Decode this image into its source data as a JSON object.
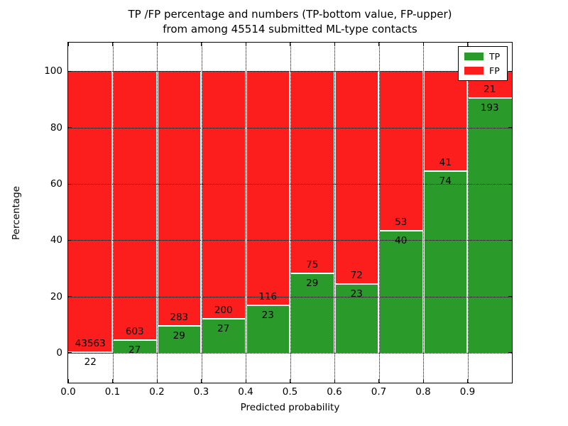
{
  "figure": {
    "title_line1": "TP /FP percentage and numbers (TP-bottom value, FP-upper)",
    "title_line2": "from among 45514 submitted ML-type contacts"
  },
  "chart_data": {
    "type": "bar",
    "subtype": "stacked-percentage",
    "title": "TP /FP percentage and numbers (TP-bottom value, FP-upper) from among 45514 submitted ML-type contacts",
    "total_contacts": 45514,
    "xlabel": "Predicted probability",
    "ylabel": "Percentage",
    "bin_edges": [
      0.0,
      0.1,
      0.2,
      0.3,
      0.4,
      0.5,
      0.6,
      0.7,
      0.8,
      0.9,
      1.0
    ],
    "categories": [
      "0.0-0.1",
      "0.1-0.2",
      "0.2-0.3",
      "0.3-0.4",
      "0.4-0.5",
      "0.5-0.6",
      "0.6-0.7",
      "0.7-0.8",
      "0.8-0.9",
      "0.9-1.0"
    ],
    "series": [
      {
        "name": "TP",
        "color": "#2a9a2a",
        "values": [
          22,
          27,
          29,
          27,
          23,
          29,
          23,
          40,
          74,
          193
        ]
      },
      {
        "name": "FP",
        "color": "#fc1d1d",
        "values": [
          43563,
          603,
          283,
          200,
          116,
          75,
          72,
          53,
          41,
          21
        ]
      }
    ],
    "tp_percent_approx": [
      0.05,
      4.29,
      9.29,
      11.89,
      16.55,
      27.88,
      24.21,
      43.01,
      64.35,
      90.19
    ],
    "xtick_labels": [
      "0.0",
      "0.1",
      "0.2",
      "0.3",
      "0.4",
      "0.5",
      "0.6",
      "0.7",
      "0.8",
      "0.9"
    ],
    "ytick_values": [
      0,
      20,
      40,
      60,
      80,
      100
    ],
    "ytick_labels": [
      "0",
      "20",
      "40",
      "60",
      "80",
      "100"
    ],
    "xlim": [
      0.0,
      1.0
    ],
    "ylim": [
      -10.6,
      110.2
    ],
    "grid": true,
    "legend": {
      "position": "upper-right",
      "entries": [
        {
          "label": "TP",
          "color": "#2a9a2a"
        },
        {
          "label": "FP",
          "color": "#fc1d1d"
        }
      ]
    }
  }
}
